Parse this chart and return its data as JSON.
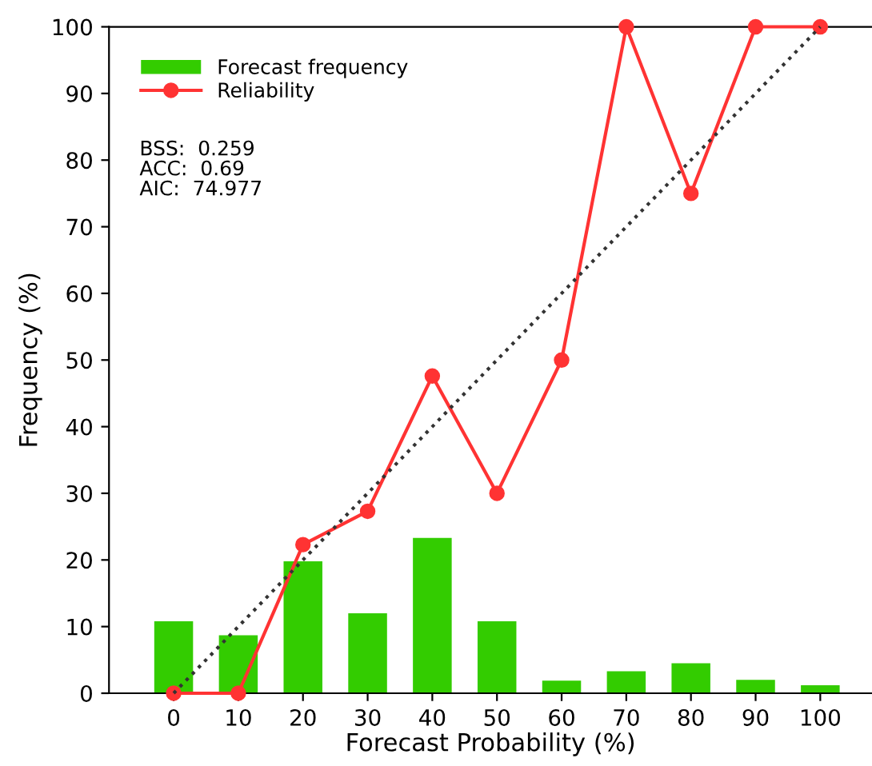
{
  "chart_data": {
    "type": "bar",
    "xlabel": "Forecast Probability (%)",
    "ylabel": "Frequency (%)",
    "x": [
      0,
      10,
      20,
      30,
      40,
      50,
      60,
      70,
      80,
      90,
      100
    ],
    "series": [
      {
        "name": "Forecast frequency",
        "color": "#33cc00",
        "values": [
          10.8,
          8.7,
          19.8,
          12,
          23.3,
          10.8,
          1.9,
          3.3,
          4.5,
          2,
          1.2
        ]
      },
      {
        "name": "Reliability",
        "type": "line",
        "color": "#ff3333",
        "marker": "circle",
        "line_style": "solid",
        "values": [
          0,
          0,
          22.3,
          27.3,
          47.6,
          30,
          50,
          100,
          75,
          100,
          100
        ]
      },
      {
        "type": "line",
        "color": "#333333",
        "line_style": "dotted",
        "marker": "none",
        "x": [
          0,
          100
        ],
        "values": [
          0,
          100
        ]
      }
    ],
    "xlim": [
      -10,
      108
    ],
    "ylim": [
      0,
      100
    ],
    "xticks": [
      0,
      10,
      20,
      30,
      40,
      50,
      60,
      70,
      80,
      90,
      100
    ],
    "yticks": [
      0,
      10,
      20,
      30,
      40,
      50,
      60,
      70,
      80,
      90,
      100
    ],
    "grid": false,
    "legend": "top left",
    "annotations": [
      "BSS:  0.259",
      "ACC:  0.69",
      "AIC:  74.977"
    ]
  }
}
